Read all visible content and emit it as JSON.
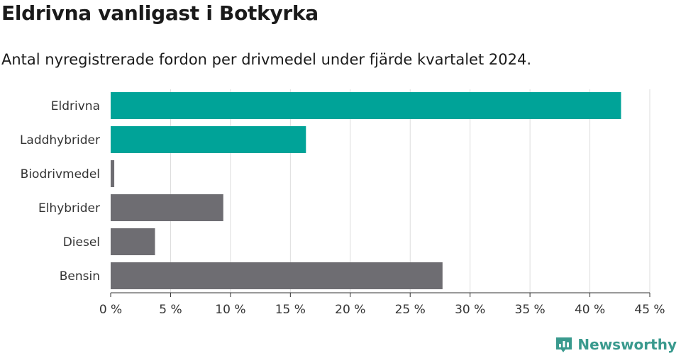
{
  "title": "Eldrivna vanligast i Botkyrka",
  "subtitle": "Antal nyregistrerade fordon per drivmedel under fjärde kvartalet 2024.",
  "brand": {
    "name": "Newsworthy",
    "color": "#3a9a8e"
  },
  "colors": {
    "highlight": "#00a398",
    "muted": "#6e6d72",
    "grid": "#dddddd",
    "axis": "#333333"
  },
  "chart_data": {
    "type": "bar",
    "orientation": "horizontal",
    "title": "Eldrivna vanligast i Botkyrka",
    "subtitle": "Antal nyregistrerade fordon per drivmedel under fjärde kvartalet 2024.",
    "categories": [
      "Eldrivna",
      "Laddhybrider",
      "Biodrivmedel",
      "Elhybrider",
      "Diesel",
      "Bensin"
    ],
    "values": [
      42.6,
      16.3,
      0.3,
      9.4,
      3.7,
      27.7
    ],
    "highlighted": [
      true,
      true,
      false,
      false,
      false,
      false
    ],
    "unit": "%",
    "xlim": [
      0,
      45
    ],
    "xticks": [
      0,
      5,
      10,
      15,
      20,
      25,
      30,
      35,
      40,
      45
    ],
    "xtick_labels": [
      "0 %",
      "5 %",
      "10 %",
      "15 %",
      "20 %",
      "25 %",
      "30 %",
      "35 %",
      "40 %",
      "45 %"
    ],
    "xlabel": "",
    "ylabel": "",
    "grid": true
  }
}
